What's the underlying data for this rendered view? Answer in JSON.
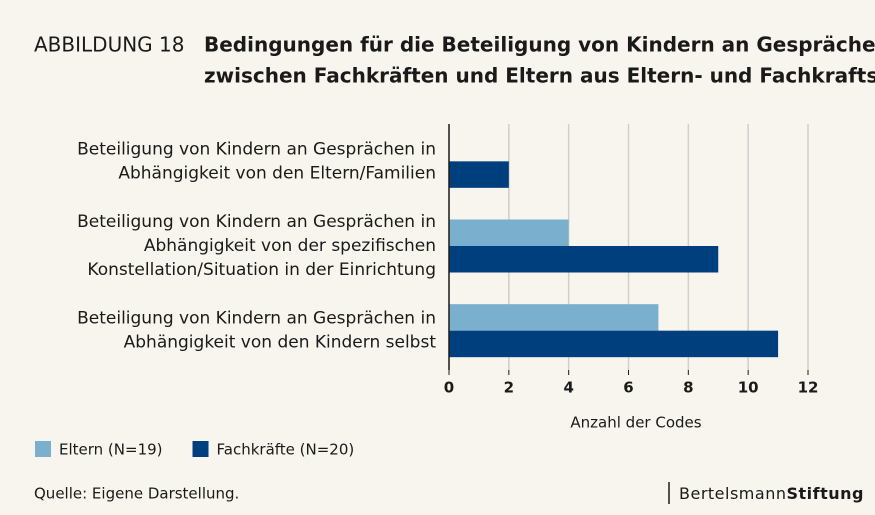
{
  "chart_data": {
    "type": "bar",
    "orientation": "horizontal",
    "figure_label": "ABBILDUNG 18",
    "title": [
      "Bedingungen für die Beteiligung von Kindern an Gesprächen",
      "zwischen Fachkräften und Eltern aus Eltern- und Fachkraftsicht"
    ],
    "categories": [
      [
        "Beteiligung von Kindern an Gesprächen in",
        "Abhängigkeit von den Eltern/Familien"
      ],
      [
        "Beteiligung von Kindern an Gesprächen in",
        "Abhängigkeit von der spezifischen",
        "Konstellation/Situation in der Einrichtung"
      ],
      [
        "Beteiligung von Kindern an Gesprächen in",
        "Abhängigkeit von den Kindern selbst"
      ]
    ],
    "series": [
      {
        "name": "Eltern (N=19)",
        "color": "#7aafcd",
        "values": [
          0,
          4,
          7
        ]
      },
      {
        "name": "Fachkräfte (N=20)",
        "color": "#003f7d",
        "values": [
          2,
          9,
          11
        ]
      }
    ],
    "xlim": [
      0,
      12
    ],
    "xticks": [
      0,
      2,
      4,
      6,
      8,
      10,
      12
    ],
    "xlabel": "Anzahl der Codes",
    "grid": true,
    "legend": "bottom-left",
    "source": "Quelle: Eigene Darstellung.",
    "brand": [
      "Bertelsmann",
      "Stiftung"
    ]
  }
}
